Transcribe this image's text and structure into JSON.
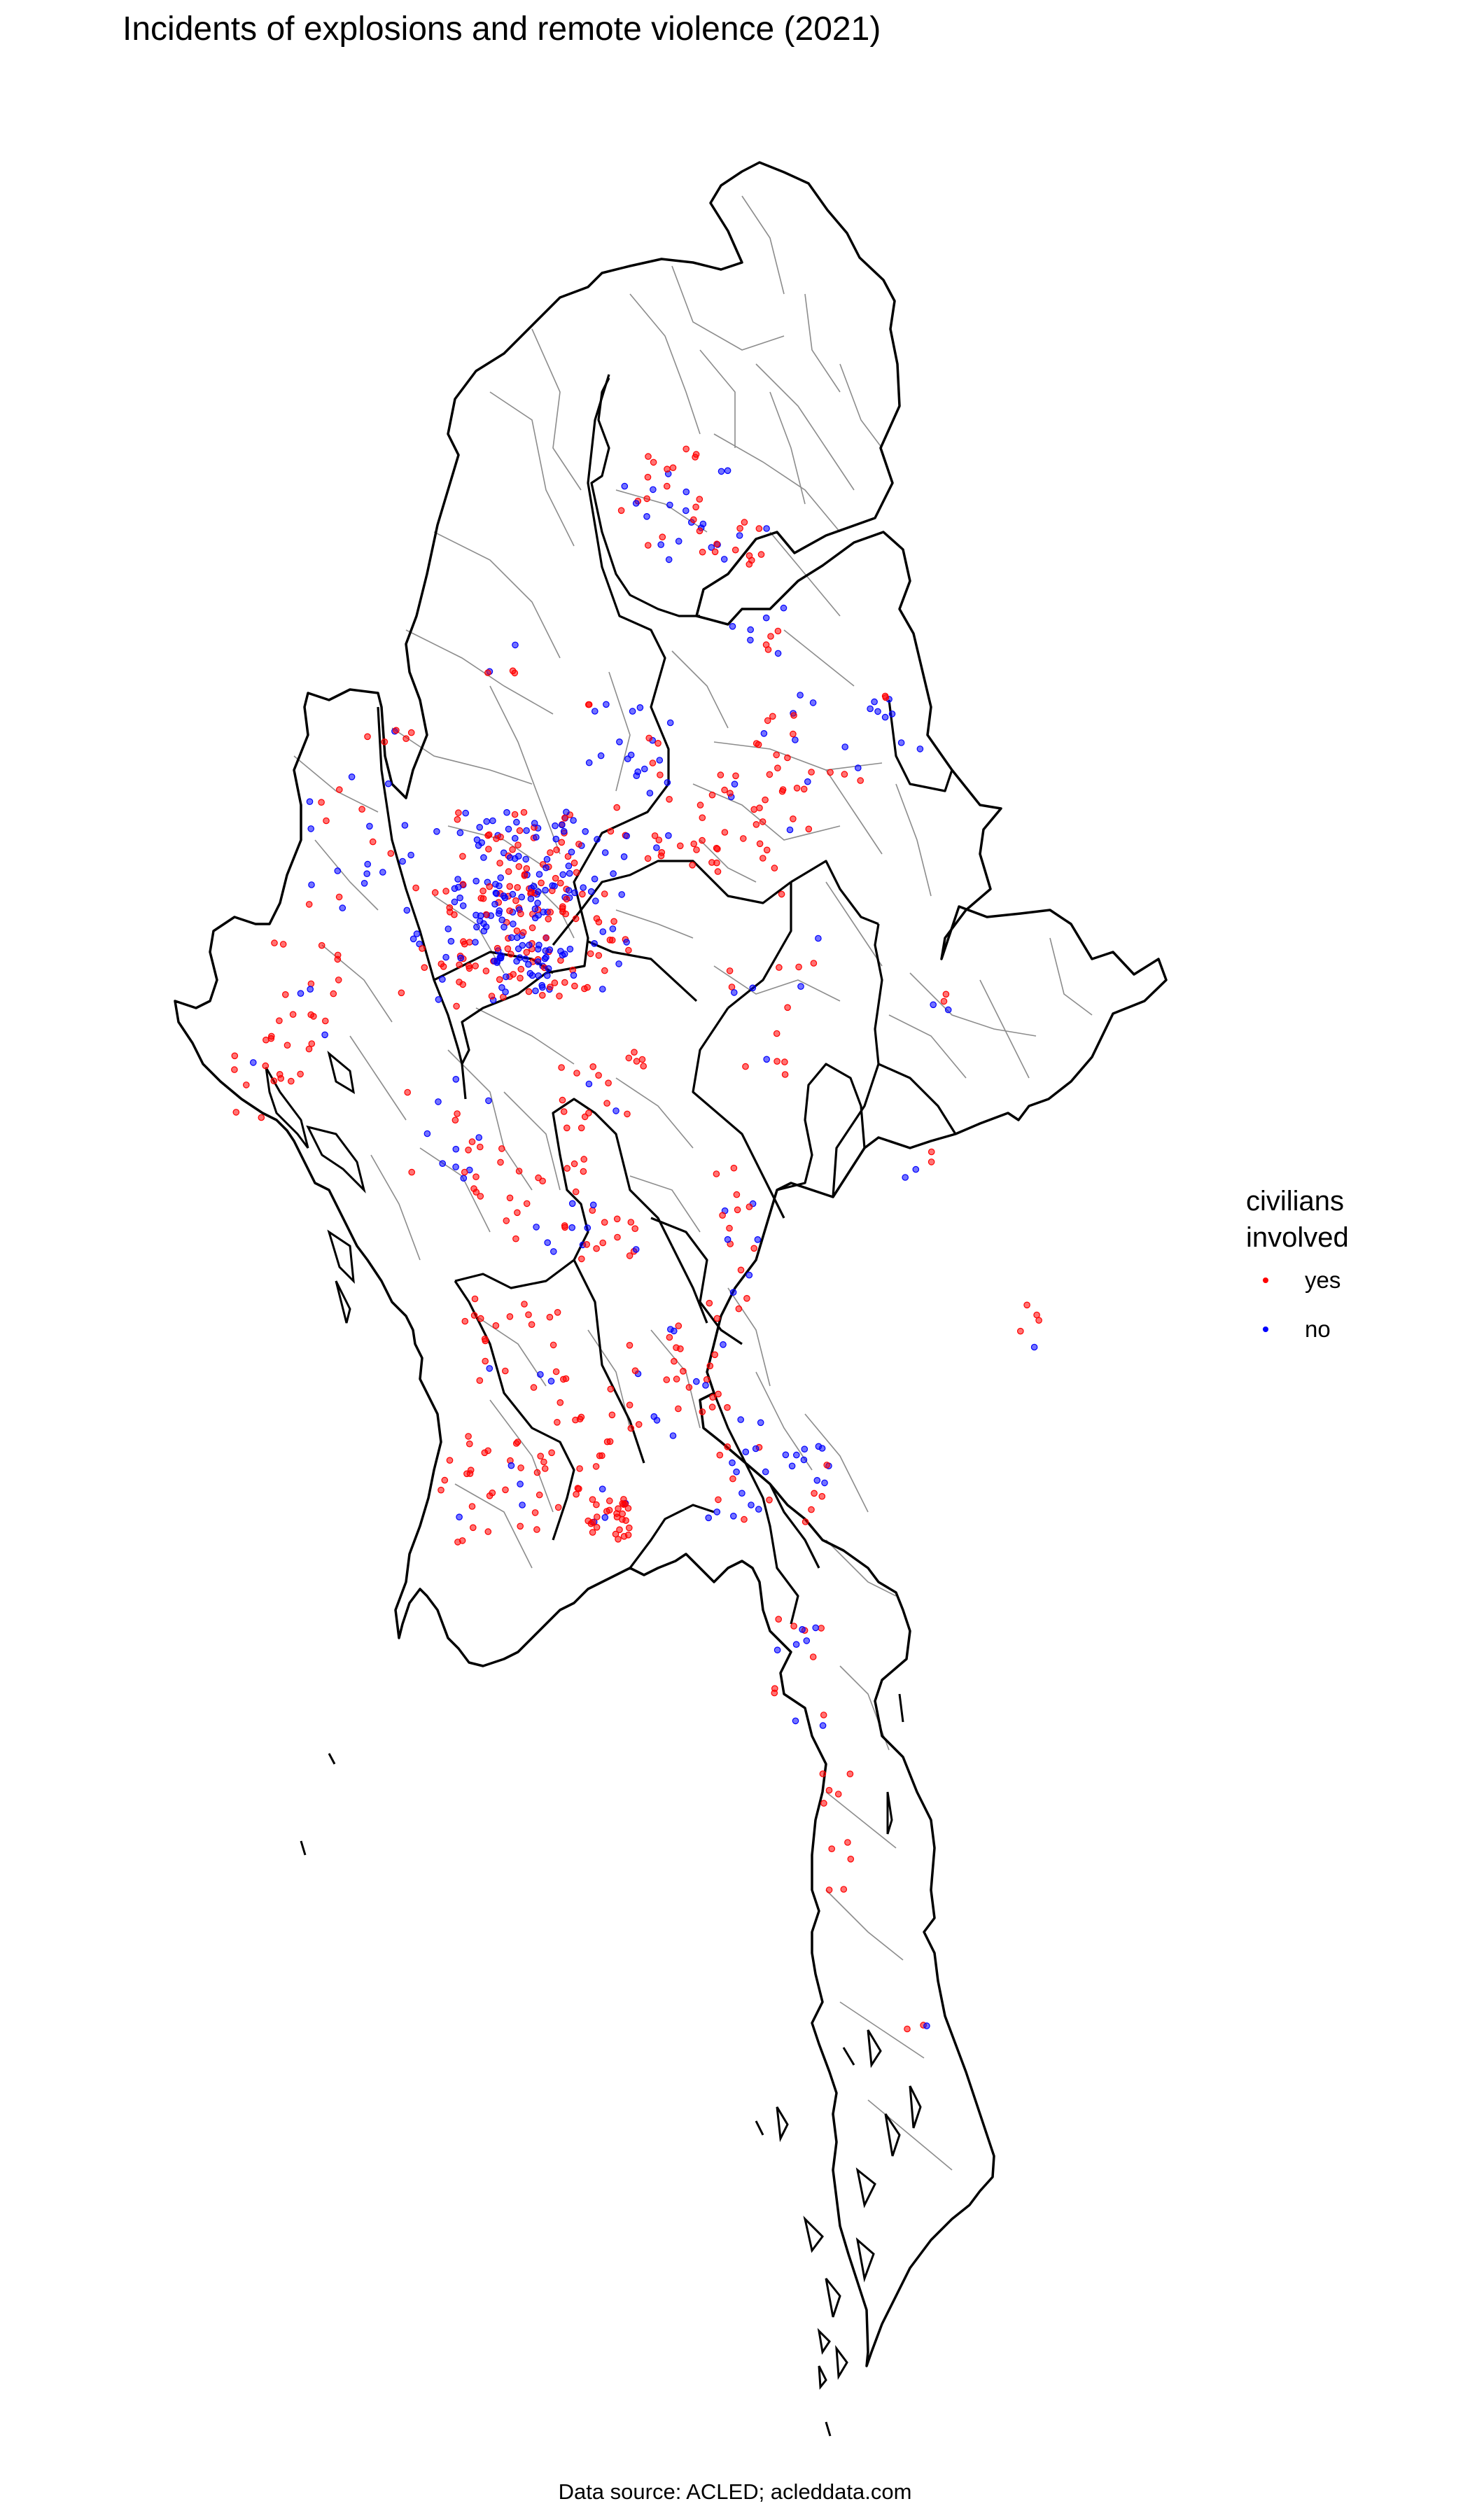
{
  "title": "Incidents of explosions and remote violence (2021)",
  "caption": "Data source: ACLED; acleddata.com",
  "legend": {
    "title_line1": "civilians",
    "title_line2": "involved",
    "items": [
      {
        "label": "yes",
        "color": "#ff0000"
      },
      {
        "label": "no",
        "color": "#0000ff"
      }
    ]
  },
  "colors": {
    "yes": "#ff0000",
    "no": "#0000ff",
    "border": "#000000",
    "subdivision": "#8c8c8c"
  }
}
